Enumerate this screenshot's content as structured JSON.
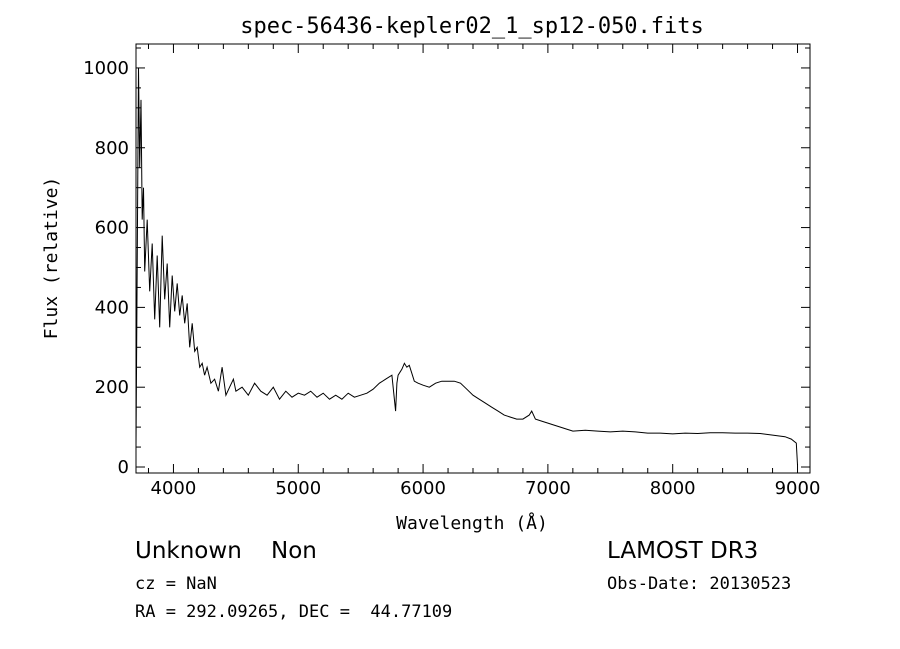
{
  "chart_data": {
    "type": "line",
    "title": "spec-56436-kepler02_1_sp12-050.fits",
    "xlabel": "Wavelength (Å)",
    "ylabel": "Flux (relative)",
    "xlim": [
      3700,
      9100
    ],
    "ylim": [
      -15,
      1060
    ],
    "xticks": [
      4000,
      5000,
      6000,
      7000,
      8000,
      9000
    ],
    "yticks": [
      0,
      200,
      400,
      600,
      800,
      1000
    ],
    "xtick_labels": [
      "4000",
      "5000",
      "6000",
      "7000",
      "8000",
      "9000"
    ],
    "ytick_labels": [
      "0",
      "200",
      "400",
      "600",
      "800",
      "1000"
    ],
    "grid": false,
    "series": [
      {
        "x": [
          3700,
          3720,
          3730,
          3740,
          3750,
          3760,
          3770,
          3790,
          3810,
          3830,
          3850,
          3870,
          3890,
          3910,
          3930,
          3950,
          3970,
          3990,
          4010,
          4030,
          4050,
          4070,
          4090,
          4110,
          4130,
          4150,
          4170,
          4190,
          4210,
          4230,
          4250,
          4270,
          4300,
          4330,
          4360,
          4390,
          4420,
          4450,
          4480,
          4500,
          4550,
          4600,
          4650,
          4700,
          4750,
          4800,
          4850,
          4900,
          4950,
          5000,
          5050,
          5100,
          5150,
          5200,
          5250,
          5300,
          5350,
          5400,
          5450,
          5500,
          5550,
          5600,
          5650,
          5700,
          5750,
          5780,
          5790,
          5800,
          5830,
          5850,
          5870,
          5890,
          5910,
          5930,
          5960,
          6000,
          6050,
          6100,
          6150,
          6200,
          6250,
          6300,
          6350,
          6400,
          6450,
          6500,
          6550,
          6600,
          6650,
          6700,
          6750,
          6800,
          6850,
          6870,
          6900,
          6950,
          7000,
          7050,
          7100,
          7150,
          7200,
          7300,
          7400,
          7500,
          7600,
          7700,
          7800,
          7900,
          8000,
          8100,
          8200,
          8300,
          8400,
          8500,
          8600,
          8700,
          8800,
          8900,
          8950,
          8990,
          9000
        ],
        "y": [
          50,
          1000,
          750,
          920,
          620,
          700,
          490,
          620,
          440,
          560,
          370,
          530,
          350,
          580,
          420,
          510,
          350,
          480,
          390,
          460,
          380,
          430,
          360,
          410,
          300,
          360,
          290,
          300,
          250,
          260,
          230,
          250,
          210,
          220,
          190,
          250,
          180,
          200,
          220,
          190,
          200,
          180,
          210,
          190,
          180,
          200,
          170,
          190,
          175,
          185,
          180,
          190,
          175,
          185,
          170,
          180,
          170,
          185,
          175,
          180,
          185,
          195,
          210,
          220,
          230,
          140,
          210,
          230,
          245,
          260,
          250,
          255,
          235,
          215,
          210,
          205,
          200,
          210,
          215,
          215,
          215,
          210,
          195,
          180,
          170,
          160,
          150,
          140,
          130,
          125,
          120,
          120,
          130,
          140,
          120,
          115,
          110,
          105,
          100,
          95,
          90,
          92,
          90,
          88,
          90,
          88,
          85,
          85,
          83,
          85,
          84,
          86,
          86,
          85,
          85,
          84,
          80,
          76,
          70,
          60,
          5
        ]
      }
    ]
  },
  "info": {
    "object": "Unknown    Non",
    "cz": "cz = NaN",
    "coords": "RA = 292.09265, DEC =  44.77109",
    "survey": "LAMOST DR3",
    "obs_date": "Obs-Date: 20130523"
  }
}
